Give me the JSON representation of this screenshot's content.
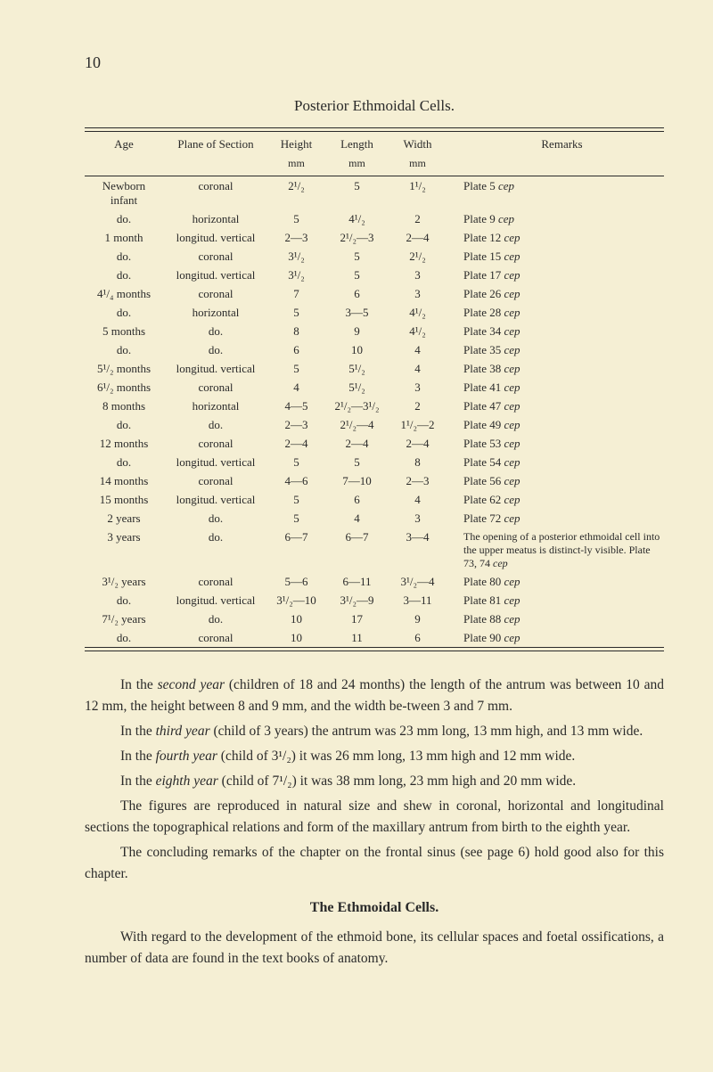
{
  "page_number": "10",
  "table_title": "Posterior Ethmoidal Cells.",
  "header": {
    "age": "Age",
    "plane": "Plane of Section",
    "height": "Height",
    "length": "Length",
    "width": "Width",
    "remarks": "Remarks",
    "unit": "mm"
  },
  "rows": [
    {
      "age": "Newborn infant",
      "plane": "coronal",
      "h": "2¹/₂",
      "l": "5",
      "w": "1¹/₂",
      "r": "Plate 5 ",
      "ri": "cep"
    },
    {
      "age": "do.",
      "plane": "horizontal",
      "h": "5",
      "l": "4¹/₂",
      "w": "2",
      "r": "Plate 9 ",
      "ri": "cep"
    },
    {
      "age": "1 month",
      "plane": "longitud. vertical",
      "h": "2—3",
      "l": "2¹/₂—3",
      "w": "2—4",
      "r": "Plate 12 ",
      "ri": "cep"
    },
    {
      "age": "do.",
      "plane": "coronal",
      "h": "3¹/₂",
      "l": "5",
      "w": "2¹/₂",
      "r": "Plate 15 ",
      "ri": "cep"
    },
    {
      "age": "do.",
      "plane": "longitud. vertical",
      "h": "3¹/₂",
      "l": "5",
      "w": "3",
      "r": "Plate 17 ",
      "ri": "cep"
    },
    {
      "age": "4¹/₄ months",
      "plane": "coronal",
      "h": "7",
      "l": "6",
      "w": "3",
      "r": "Plate 26 ",
      "ri": "cep"
    },
    {
      "age": "do.",
      "plane": "horizontal",
      "h": "5",
      "l": "3—5",
      "w": "4¹/₂",
      "r": "Plate 28 ",
      "ri": "cep"
    },
    {
      "age": "5 months",
      "plane": "do.",
      "h": "8",
      "l": "9",
      "w": "4¹/₂",
      "r": "Plate 34 ",
      "ri": "cep"
    },
    {
      "age": "do.",
      "plane": "do.",
      "h": "6",
      "l": "10",
      "w": "4",
      "r": "Plate 35 ",
      "ri": "cep"
    },
    {
      "age": "5¹/₂ months",
      "plane": "longitud. vertical",
      "h": "5",
      "l": "5¹/₂",
      "w": "4",
      "r": "Plate 38 ",
      "ri": "cep"
    },
    {
      "age": "6¹/₂ months",
      "plane": "coronal",
      "h": "4",
      "l": "5¹/₂",
      "w": "3",
      "r": "Plate 41 ",
      "ri": "cep"
    },
    {
      "age": "8 months",
      "plane": "horizontal",
      "h": "4—5",
      "l": "2¹/₂—3¹/₂",
      "w": "2",
      "r": "Plate 47 ",
      "ri": "cep"
    },
    {
      "age": "do.",
      "plane": "do.",
      "h": "2—3",
      "l": "2¹/₂—4",
      "w": "1¹/₂—2",
      "r": "Plate 49 ",
      "ri": "cep"
    },
    {
      "age": "12 months",
      "plane": "coronal",
      "h": "2—4",
      "l": "2—4",
      "w": "2—4",
      "r": "Plate 53 ",
      "ri": "cep"
    },
    {
      "age": "do.",
      "plane": "longitud. vertical",
      "h": "5",
      "l": "5",
      "w": "8",
      "r": "Plate 54 ",
      "ri": "cep"
    },
    {
      "age": "14 months",
      "plane": "coronal",
      "h": "4—6",
      "l": "7—10",
      "w": "2—3",
      "r": "Plate 56 ",
      "ri": "cep"
    },
    {
      "age": "15 months",
      "plane": "longitud. vertical",
      "h": "5",
      "l": "6",
      "w": "4",
      "r": "Plate 62 ",
      "ri": "cep"
    },
    {
      "age": "2 years",
      "plane": "do.",
      "h": "5",
      "l": "4",
      "w": "3",
      "r": "Plate 72 ",
      "ri": "cep"
    },
    {
      "age": "3 years",
      "plane": "do.",
      "h": "6—7",
      "l": "6—7",
      "w": "3—4",
      "r": "The opening of a posterior ethmoidal cell into the upper meatus is distinct-ly visible. Plate 73, 74 ",
      "ri": "cep",
      "special": true
    },
    {
      "age": "3¹/₂ years",
      "plane": "coronal",
      "h": "5—6",
      "l": "6—11",
      "w": "3¹/₂—4",
      "r": "Plate 80 ",
      "ri": "cep"
    },
    {
      "age": "do.",
      "plane": "longitud. vertical",
      "h": "3¹/₂—10",
      "l": "3¹/₂—9",
      "w": "3—11",
      "r": "Plate 81 ",
      "ri": "cep"
    },
    {
      "age": "7¹/₂ years",
      "plane": "do.",
      "h": "10",
      "l": "17",
      "w": "9",
      "r": "Plate 88 ",
      "ri": "cep"
    },
    {
      "age": "do.",
      "plane": "coronal",
      "h": "10",
      "l": "11",
      "w": "6",
      "r": "Plate 90 ",
      "ri": "cep"
    }
  ],
  "body": {
    "p1_a": "In the ",
    "p1_i": "second year",
    "p1_b": " (children of 18 and 24 months) the length of the antrum was between 10 and 12 mm, the height between 8 and 9 mm, and the width be-tween 3 and 7 mm.",
    "p2_a": "In the ",
    "p2_i": "third year",
    "p2_b": " (child of 3 years) the antrum was 23 mm long, 13 mm high, and 13 mm wide.",
    "p3_a": "In the ",
    "p3_i": "fourth year",
    "p3_b": " (child of 3¹/₂) it was 26 mm long, 13 mm high and 12 mm wide.",
    "p4_a": "In the ",
    "p4_i": "eighth year",
    "p4_b": " (child of 7¹/₂) it was 38 mm long, 23 mm high and 20 mm wide.",
    "p5": "The figures are reproduced in natural size and shew in coronal, horizontal and longitudinal sections the topographical relations and form of the maxillary antrum from birth to the eighth year.",
    "p6": "The concluding remarks of the chapter on the frontal sinus (see page 6) hold good also for this chapter.",
    "heading": "The Ethmoidal Cells.",
    "p7": "With regard to the development of the ethmoid bone, its cellular spaces and foetal ossifications, a number of data are found in the text books of anatomy."
  }
}
